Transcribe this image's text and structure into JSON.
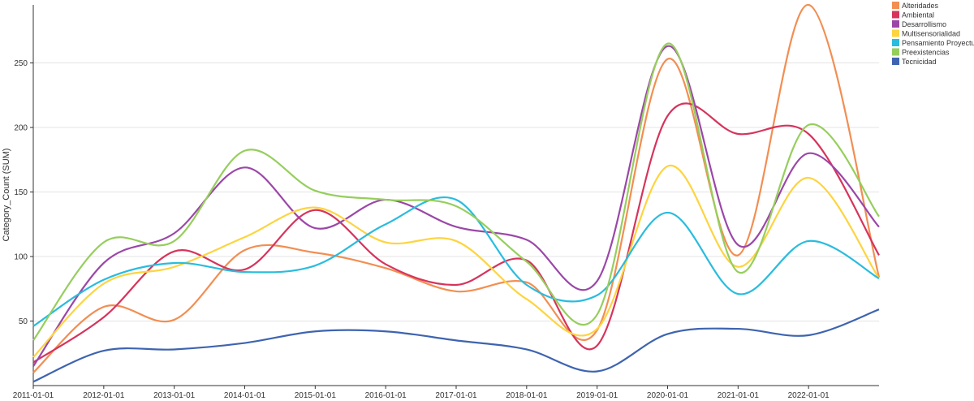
{
  "chart_data": {
    "type": "line",
    "title": "",
    "xlabel": "",
    "ylabel": "Category_Count (SUM)",
    "ylim": [
      0,
      295
    ],
    "yticks": [
      50,
      100,
      150,
      200,
      250
    ],
    "x": [
      "2011-01-01",
      "2012-01-01",
      "2013-01-01",
      "2014-01-01",
      "2015-01-01",
      "2016-01-01",
      "2017-01-01",
      "2018-01-01",
      "2019-01-01",
      "2020-01-01",
      "2021-01-01",
      "2022-01-01",
      "2023-01-01"
    ],
    "xtick_labels": [
      "2011-01-01",
      "2012-01-01",
      "2013-01-01",
      "2014-01-01",
      "2015-01-01",
      "2016-01-01",
      "2017-01-01",
      "2018-01-01",
      "2019-01-01",
      "2020-01-01",
      "2021-01-01",
      "2022-01-01"
    ],
    "grid": true,
    "legend_position": "top-right",
    "series": [
      {
        "name": "Alteridades",
        "color": "#f28e52",
        "values": [
          10,
          61,
          51,
          105,
          103,
          91,
          73,
          80,
          43,
          253,
          101,
          295,
          84
        ]
      },
      {
        "name": "Ambiental",
        "color": "#d6345c",
        "values": [
          18,
          53,
          104,
          90,
          136,
          94,
          78,
          97,
          31,
          209,
          195,
          195,
          101
        ]
      },
      {
        "name": "Desarrollismo",
        "color": "#9b47a8",
        "values": [
          15,
          95,
          118,
          169,
          122,
          144,
          123,
          113,
          81,
          263,
          109,
          180,
          123
        ]
      },
      {
        "name": "Multisensorialidad",
        "color": "#fdd440",
        "values": [
          22,
          79,
          92,
          115,
          138,
          111,
          112,
          67,
          44,
          170,
          92,
          161,
          83
        ]
      },
      {
        "name": "Pensamiento Proyectual",
        "color": "#29bcde",
        "values": [
          46,
          82,
          95,
          88,
          93,
          125,
          144,
          78,
          70,
          134,
          71,
          112,
          83
        ]
      },
      {
        "name": "Preexistencias",
        "color": "#96ce5c",
        "values": [
          35,
          111,
          112,
          182,
          151,
          144,
          139,
          96,
          55,
          265,
          88,
          202,
          131
        ]
      },
      {
        "name": "Tecnicidad",
        "color": "#3e64b0",
        "values": [
          3,
          27,
          28,
          33,
          42,
          42,
          35,
          28,
          11,
          40,
          44,
          39,
          59
        ]
      }
    ]
  }
}
